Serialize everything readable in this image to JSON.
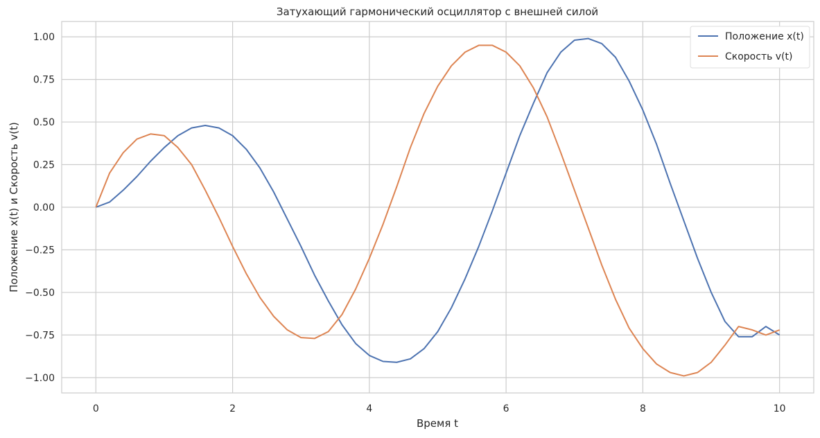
{
  "chart_data": {
    "type": "line",
    "title": "Затухающий гармонический осциллятор с внешней силой",
    "xlabel": "Время t",
    "ylabel": "Положение x(t) и Скорость v(t)",
    "xlim": [
      -0.5,
      10.5
    ],
    "ylim": [
      -1.09,
      1.09
    ],
    "xticks": [
      "0",
      "2",
      "4",
      "6",
      "8",
      "10"
    ],
    "yticks": [
      "1.00",
      "0.75",
      "0.50",
      "0.25",
      "0.00",
      "−0.25",
      "−0.50",
      "−0.75",
      "−1.00"
    ],
    "grid": true,
    "legend_position": "top-right",
    "colors": {
      "position": "#4c72b0",
      "velocity": "#dd8452",
      "grid": "#cccccc"
    },
    "x": [
      0,
      0.2,
      0.4,
      0.6,
      0.8,
      1.0,
      1.2,
      1.4,
      1.6,
      1.8,
      2.0,
      2.2,
      2.4,
      2.6,
      2.8,
      3.0,
      3.2,
      3.4,
      3.6,
      3.8,
      4.0,
      4.2,
      4.4,
      4.6,
      4.8,
      5.0,
      5.2,
      5.4,
      5.6,
      5.8,
      6.0,
      6.2,
      6.4,
      6.6,
      6.8,
      7.0,
      7.2,
      7.4,
      7.6,
      7.8,
      8.0,
      8.2,
      8.4,
      8.6,
      8.8,
      9.0,
      9.2,
      9.4,
      9.6,
      9.8,
      10.0
    ],
    "series": [
      {
        "name": "Положение x(t)",
        "values": [
          0,
          0.03,
          0.1,
          0.18,
          0.27,
          0.35,
          0.42,
          0.465,
          0.48,
          0.465,
          0.42,
          0.34,
          0.23,
          0.09,
          -0.07,
          -0.23,
          -0.4,
          -0.55,
          -0.69,
          -0.8,
          -0.87,
          -0.905,
          -0.91,
          -0.89,
          -0.83,
          -0.73,
          -0.59,
          -0.42,
          -0.23,
          -0.02,
          0.2,
          0.42,
          0.61,
          0.79,
          0.91,
          0.98,
          0.99,
          0.96,
          0.88,
          0.74,
          0.57,
          0.37,
          0.14,
          -0.08,
          -0.3,
          -0.5,
          -0.67,
          -0.76,
          -0.76,
          -0.7,
          -0.75
        ]
      },
      {
        "name": "Скорость v(t)",
        "values": [
          0,
          0.2,
          0.32,
          0.4,
          0.43,
          0.42,
          0.35,
          0.25,
          0.1,
          -0.06,
          -0.23,
          -0.39,
          -0.53,
          -0.64,
          -0.72,
          -0.765,
          -0.77,
          -0.73,
          -0.63,
          -0.48,
          -0.3,
          -0.1,
          0.12,
          0.35,
          0.55,
          0.71,
          0.83,
          0.91,
          0.95,
          0.95,
          0.91,
          0.83,
          0.7,
          0.53,
          0.32,
          0.1,
          -0.12,
          -0.34,
          -0.54,
          -0.71,
          -0.83,
          -0.92,
          -0.97,
          -0.99,
          -0.97,
          -0.91,
          -0.81,
          -0.7,
          -0.72,
          -0.75,
          -0.72
        ]
      }
    ]
  }
}
